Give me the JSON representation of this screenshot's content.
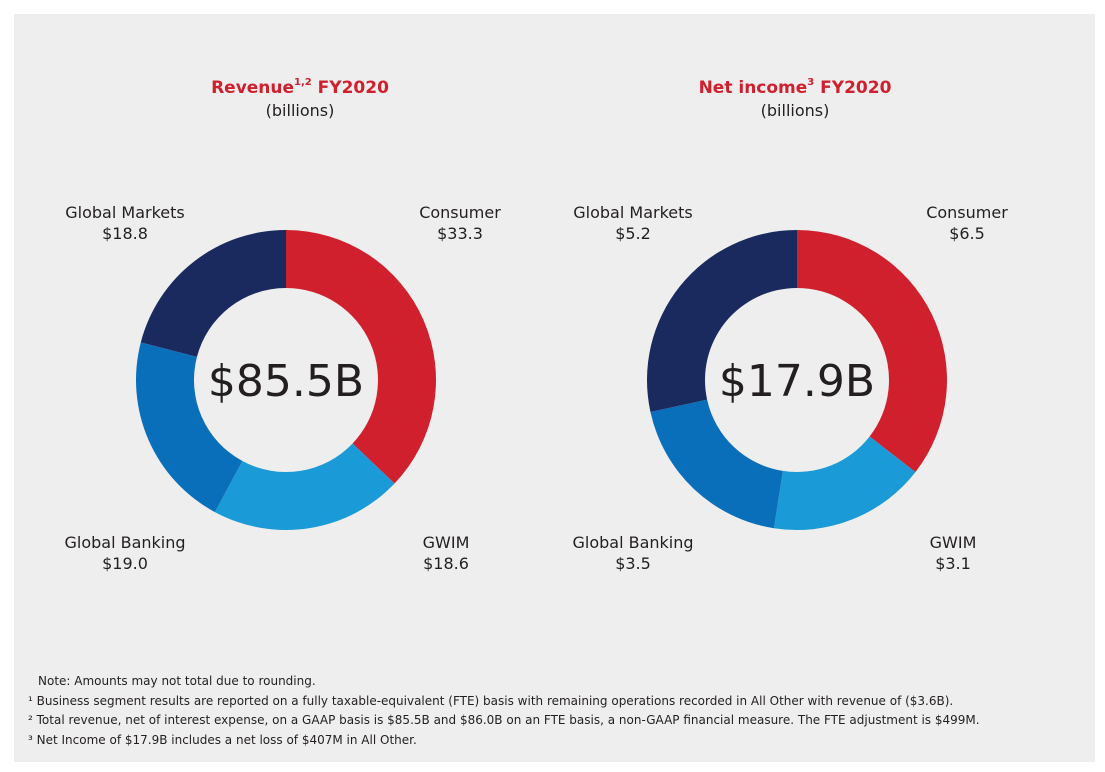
{
  "chart_data": [
    {
      "type": "donut",
      "title": "Revenue",
      "title_sup": "1,2",
      "title_suffix": " FY2020",
      "subtitle": "(billions)",
      "center_label": "$85.5B",
      "units": "billions USD",
      "segments": [
        {
          "name": "Consumer",
          "value": 33.3,
          "label": "$33.3",
          "color": "#d0202e"
        },
        {
          "name": "GWIM",
          "value": 18.6,
          "label": "$18.6",
          "color": "#1a9ad6"
        },
        {
          "name": "Global Banking",
          "value": 19.0,
          "label": "$19.0",
          "color": "#0a6fba"
        },
        {
          "name": "Global Markets",
          "value": 18.8,
          "label": "$18.8",
          "color": "#1b2a5e"
        }
      ]
    },
    {
      "type": "donut",
      "title": "Net income",
      "title_sup": "3",
      "title_suffix": " FY2020",
      "subtitle": "(billions)",
      "center_label": "$17.9B",
      "units": "billions USD",
      "segments": [
        {
          "name": "Consumer",
          "value": 6.5,
          "label": "$6.5",
          "color": "#d0202e"
        },
        {
          "name": "GWIM",
          "value": 3.1,
          "label": "$3.1",
          "color": "#1a9ad6"
        },
        {
          "name": "Global Banking",
          "value": 3.5,
          "label": "$3.5",
          "color": "#0a6fba"
        },
        {
          "name": "Global Markets",
          "value": 5.2,
          "label": "$5.2",
          "color": "#1b2a5e"
        }
      ]
    }
  ],
  "notes": {
    "note": "Note: Amounts may not total due to rounding.",
    "footnote1": "¹ Business segment results are reported on a fully taxable-equivalent (FTE) basis with remaining operations recorded in All Other with revenue of ($3.6B).",
    "footnote2": "² Total revenue, net of interest expense, on a GAAP basis is $85.5B and $86.0B on an FTE basis, a non-GAAP financial measure. The FTE adjustment is $499M.",
    "footnote3": "³ Net Income of $17.9B includes a net loss of $407M in All Other."
  }
}
